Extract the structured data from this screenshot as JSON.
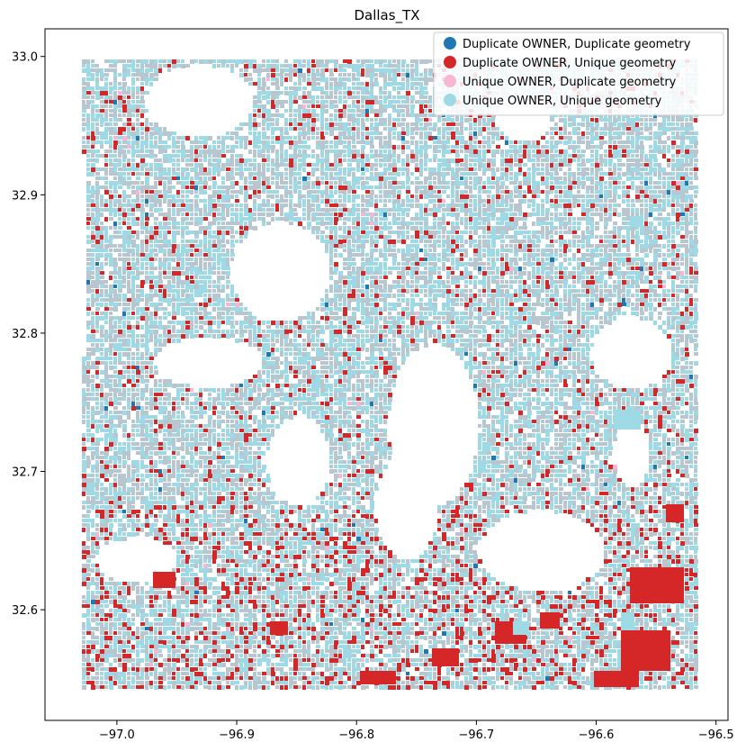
{
  "title": "Dallas_TX",
  "chart_data": {
    "type": "map",
    "title": "Dallas_TX",
    "xlabel": "",
    "ylabel": "",
    "xlim": [
      -97.06,
      -96.49
    ],
    "ylim": [
      32.52,
      33.02
    ],
    "x_ticks": [
      -97.0,
      -96.9,
      -96.8,
      -96.7,
      -96.6,
      -96.5
    ],
    "x_tick_labels": [
      "−97.0",
      "−96.9",
      "−96.8",
      "−96.7",
      "−96.6",
      "−96.5"
    ],
    "y_ticks": [
      32.6,
      32.7,
      32.8,
      32.9,
      33.0
    ],
    "y_tick_labels": [
      "32.6",
      "32.7",
      "32.8",
      "32.9",
      "33.0"
    ],
    "grid": false,
    "legend_position": "top-right",
    "categories": [
      {
        "label": "Duplicate OWNER, Duplicate geometry",
        "color": "#1f77b4"
      },
      {
        "label": "Duplicate OWNER, Unique geometry",
        "color": "#d62728"
      },
      {
        "label": "Unique OWNER, Duplicate geometry",
        "color": "#f7b6d2"
      },
      {
        "label": "Unique OWNER, Unique geometry",
        "color": "#9edae5"
      }
    ]
  }
}
